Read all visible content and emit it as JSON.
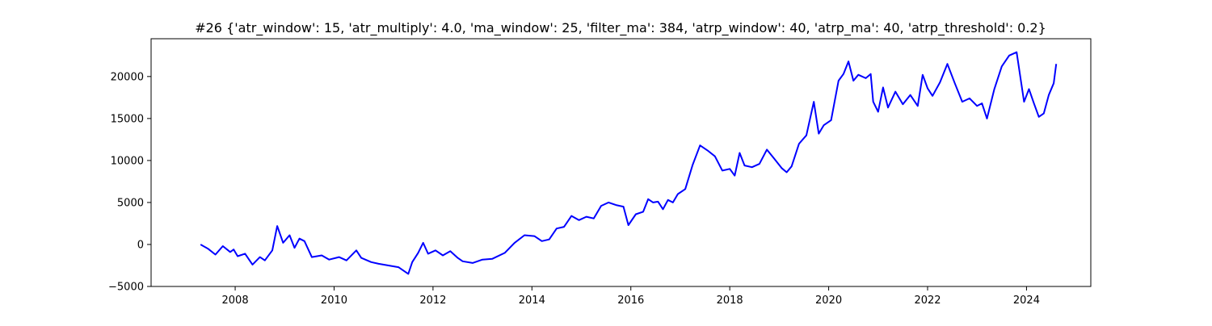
{
  "chart_data": {
    "type": "line",
    "title": "#26 {'atr_window': 15, 'atr_multiply': 4.0, 'ma_window': 25, 'filter_ma': 384, 'atrp_window': 40, 'atrp_ma': 40, 'atrp_threshold': 0.2}",
    "xlabel": "",
    "ylabel": "",
    "xlim": [
      2006.3,
      2025.3
    ],
    "ylim": [
      -5000,
      24500
    ],
    "x_ticks": [
      2008,
      2010,
      2012,
      2014,
      2016,
      2018,
      2020,
      2022,
      2024
    ],
    "y_ticks": [
      -5000,
      0,
      5000,
      10000,
      15000,
      20000
    ],
    "grid": false,
    "legend": "none",
    "series": [
      {
        "color": "#0000ff",
        "x": [
          2007.3,
          2007.45,
          2007.6,
          2007.75,
          2007.9,
          2007.97,
          2008.05,
          2008.2,
          2008.35,
          2008.5,
          2008.6,
          2008.75,
          2008.85,
          2008.97,
          2009.1,
          2009.2,
          2009.3,
          2009.4,
          2009.55,
          2009.75,
          2009.9,
          2010.1,
          2010.25,
          2010.45,
          2010.55,
          2010.75,
          2010.9,
          2011.1,
          2011.3,
          2011.5,
          2011.58,
          2011.7,
          2011.8,
          2011.9,
          2012.05,
          2012.2,
          2012.35,
          2012.5,
          2012.6,
          2012.8,
          2013.0,
          2013.2,
          2013.45,
          2013.65,
          2013.85,
          2014.05,
          2014.2,
          2014.35,
          2014.5,
          2014.65,
          2014.8,
          2014.95,
          2015.1,
          2015.25,
          2015.4,
          2015.55,
          2015.7,
          2015.85,
          2015.95,
          2016.1,
          2016.25,
          2016.35,
          2016.45,
          2016.55,
          2016.65,
          2016.75,
          2016.85,
          2016.95,
          2017.1,
          2017.25,
          2017.4,
          2017.55,
          2017.7,
          2017.85,
          2018.0,
          2018.1,
          2018.2,
          2018.3,
          2018.45,
          2018.6,
          2018.75,
          2018.9,
          2019.05,
          2019.15,
          2019.25,
          2019.4,
          2019.55,
          2019.7,
          2019.8,
          2019.9,
          2020.05,
          2020.2,
          2020.3,
          2020.4,
          2020.5,
          2020.6,
          2020.75,
          2020.85,
          2020.9,
          2021.0,
          2021.1,
          2021.2,
          2021.35,
          2021.5,
          2021.65,
          2021.8,
          2021.9,
          2022.0,
          2022.1,
          2022.25,
          2022.4,
          2022.55,
          2022.7,
          2022.85,
          2023.0,
          2023.1,
          2023.2,
          2023.35,
          2023.5,
          2023.65,
          2023.8,
          2023.95,
          2024.05,
          2024.15,
          2024.25,
          2024.35,
          2024.45,
          2024.55,
          2024.6
        ],
        "y": [
          0,
          -500,
          -1200,
          -200,
          -900,
          -600,
          -1400,
          -1100,
          -2400,
          -1500,
          -1900,
          -700,
          2200,
          200,
          1100,
          -400,
          700,
          400,
          -1500,
          -1300,
          -1800,
          -1500,
          -1900,
          -700,
          -1600,
          -2100,
          -2300,
          -2500,
          -2700,
          -3500,
          -2100,
          -1000,
          200,
          -1100,
          -700,
          -1300,
          -800,
          -1600,
          -2000,
          -2200,
          -1800,
          -1700,
          -1000,
          200,
          1100,
          1000,
          400,
          600,
          1900,
          2100,
          3400,
          2900,
          3300,
          3100,
          4600,
          5000,
          4700,
          4500,
          2300,
          3600,
          3900,
          5400,
          5000,
          5100,
          4200,
          5300,
          5000,
          6000,
          6600,
          9500,
          11800,
          11200,
          10500,
          8800,
          9000,
          8200,
          10900,
          9400,
          9200,
          9600,
          11300,
          10200,
          9100,
          8600,
          9300,
          12000,
          13000,
          17000,
          13200,
          14200,
          14800,
          19500,
          20300,
          21800,
          19500,
          20200,
          19800,
          20300,
          17000,
          15800,
          18700,
          16300,
          18200,
          16700,
          17800,
          16500,
          20200,
          18600,
          17700,
          19300,
          21500,
          19200,
          17000,
          17400,
          16500,
          16800,
          15000,
          18500,
          21200,
          22500,
          22900,
          17000,
          18500,
          16800,
          15200,
          15600,
          17800,
          19200,
          21500
        ]
      }
    ]
  }
}
